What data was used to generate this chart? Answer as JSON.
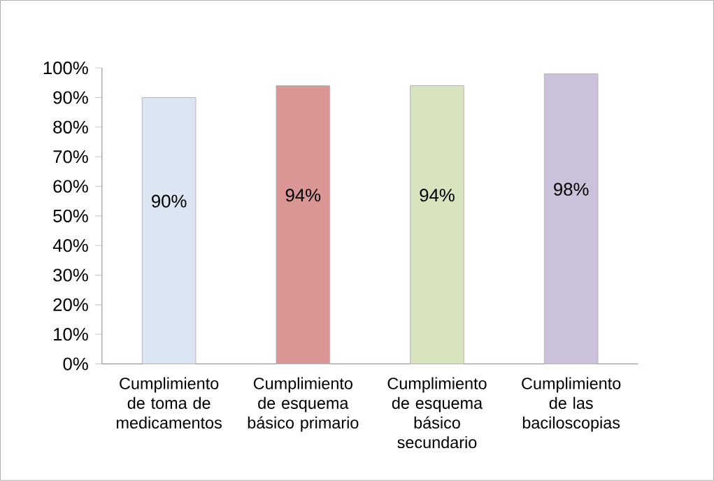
{
  "chart_data": {
    "type": "bar",
    "categories": [
      "Cumplimiento de toma de medicamentos",
      "Cumplimiento de esquema básico primario",
      "Cumplimiento de esquema básico secundario",
      "Cumplimiento de las baciloscopias"
    ],
    "values": [
      90,
      94,
      94,
      98
    ],
    "colors": [
      "#dce6f2",
      "#d99694",
      "#d7e4bd",
      "#ccc1da"
    ],
    "value_labels": [
      "90%",
      "94%",
      "94%",
      "98%"
    ],
    "ylim": [
      0,
      100
    ],
    "yticks": [
      {
        "value": 0,
        "label": "0%"
      },
      {
        "value": 10,
        "label": "10%"
      },
      {
        "value": 20,
        "label": "20%"
      },
      {
        "value": 30,
        "label": "30%"
      },
      {
        "value": 40,
        "label": "40%"
      },
      {
        "value": 50,
        "label": "50%"
      },
      {
        "value": 60,
        "label": "60%"
      },
      {
        "value": 70,
        "label": "70%"
      },
      {
        "value": 80,
        "label": "80%"
      },
      {
        "value": 90,
        "label": "90%"
      },
      {
        "value": 100,
        "label": "100%"
      }
    ],
    "grid": false
  }
}
